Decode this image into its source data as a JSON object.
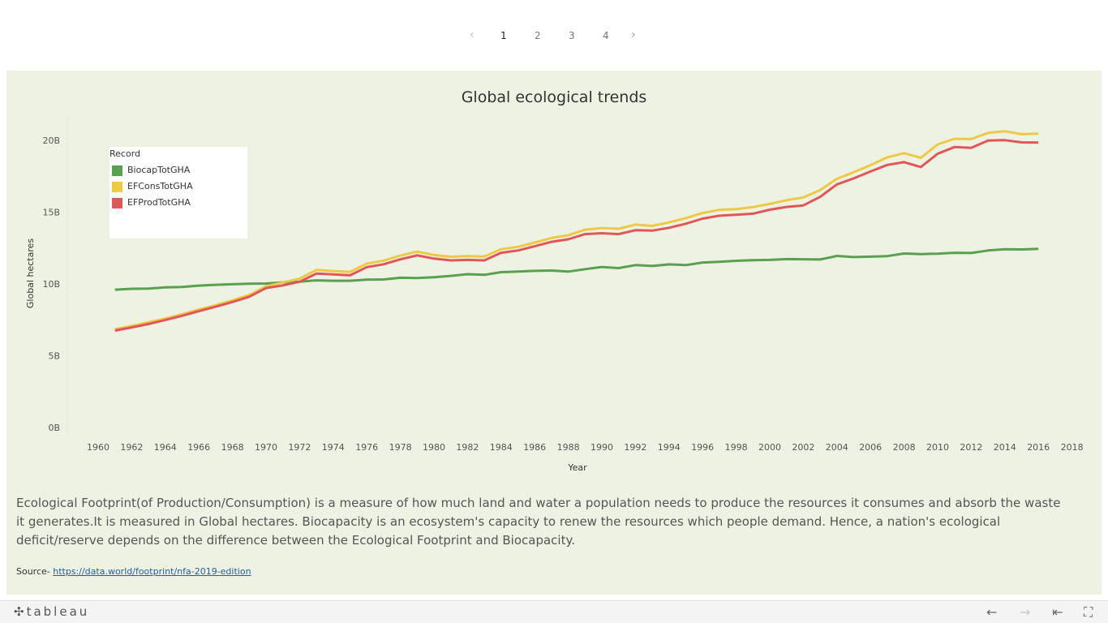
{
  "pager": {
    "prev": "‹",
    "next": "›",
    "pages": [
      "1",
      "2",
      "3",
      "4"
    ],
    "active": "1"
  },
  "chart_data": {
    "type": "line",
    "title": "Global ecological trends",
    "xlabel": "Year",
    "ylabel": "Global hectares",
    "xlim": [
      1959,
      2019
    ],
    "ylim": [
      0,
      21000000000
    ],
    "x_ticks": [
      "1960",
      "1962",
      "1964",
      "1966",
      "1968",
      "1970",
      "1972",
      "1974",
      "1976",
      "1978",
      "1980",
      "1982",
      "1984",
      "1986",
      "1988",
      "1990",
      "1992",
      "1994",
      "1996",
      "1998",
      "2000",
      "2002",
      "2004",
      "2006",
      "2008",
      "2010",
      "2012",
      "2014",
      "2016",
      "2018"
    ],
    "y_ticks": [
      {
        "value": 0,
        "label": "0B"
      },
      {
        "value": 5000000000,
        "label": "5B"
      },
      {
        "value": 10000000000,
        "label": "10B"
      },
      {
        "value": 15000000000,
        "label": "15B"
      },
      {
        "value": 20000000000,
        "label": "20B"
      }
    ],
    "legend_title": "Record",
    "legend_position": "top-left",
    "x": [
      1961,
      1962,
      1963,
      1964,
      1965,
      1966,
      1967,
      1968,
      1969,
      1970,
      1971,
      1972,
      1973,
      1974,
      1975,
      1976,
      1977,
      1978,
      1979,
      1980,
      1981,
      1982,
      1983,
      1984,
      1985,
      1986,
      1987,
      1988,
      1989,
      1990,
      1991,
      1992,
      1993,
      1994,
      1995,
      1996,
      1997,
      1998,
      1999,
      2000,
      2001,
      2002,
      2003,
      2004,
      2005,
      2006,
      2007,
      2008,
      2009,
      2010,
      2011,
      2012,
      2013,
      2014,
      2015,
      2016
    ],
    "series": [
      {
        "name": "BiocapTotGHA",
        "color": "#59a14f",
        "values": [
          9.6,
          9.66,
          9.67,
          9.76,
          9.79,
          9.88,
          9.94,
          9.98,
          10.01,
          10.03,
          10.11,
          10.16,
          10.25,
          10.22,
          10.22,
          10.3,
          10.31,
          10.43,
          10.41,
          10.47,
          10.56,
          10.68,
          10.63,
          10.82,
          10.86,
          10.91,
          10.93,
          10.86,
          11.03,
          11.18,
          11.1,
          11.31,
          11.25,
          11.36,
          11.31,
          11.49,
          11.54,
          11.61,
          11.65,
          11.67,
          11.73,
          11.72,
          11.7,
          11.95,
          11.87,
          11.9,
          11.94,
          12.12,
          12.08,
          12.11,
          12.17,
          12.15,
          12.33,
          12.42,
          12.4,
          12.44
        ]
      },
      {
        "name": "EFConsTotGHA",
        "color": "#edc948",
        "values": [
          6.85,
          7.08,
          7.32,
          7.59,
          7.89,
          8.22,
          8.52,
          8.86,
          9.23,
          9.83,
          10.11,
          10.37,
          10.97,
          10.9,
          10.84,
          11.41,
          11.62,
          11.97,
          12.25,
          12.01,
          11.89,
          11.93,
          11.91,
          12.42,
          12.58,
          12.88,
          13.2,
          13.39,
          13.78,
          13.89,
          13.84,
          14.13,
          14.04,
          14.29,
          14.58,
          14.94,
          15.16,
          15.21,
          15.35,
          15.57,
          15.83,
          16.02,
          16.53,
          17.32,
          17.78,
          18.27,
          18.82,
          19.11,
          18.78,
          19.72,
          20.11,
          20.09,
          20.52,
          20.63,
          20.43,
          20.47
        ]
      },
      {
        "name": "EFProdTotGHA",
        "color": "#e15759",
        "values": [
          6.75,
          6.97,
          7.21,
          7.49,
          7.78,
          8.11,
          8.41,
          8.74,
          9.11,
          9.71,
          9.9,
          10.15,
          10.72,
          10.66,
          10.6,
          11.17,
          11.37,
          11.71,
          11.99,
          11.76,
          11.64,
          11.67,
          11.64,
          12.17,
          12.33,
          12.62,
          12.93,
          13.11,
          13.47,
          13.53,
          13.47,
          13.74,
          13.71,
          13.91,
          14.19,
          14.55,
          14.75,
          14.82,
          14.89,
          15.17,
          15.36,
          15.47,
          16.06,
          16.93,
          17.35,
          17.83,
          18.29,
          18.48,
          18.14,
          19.07,
          19.53,
          19.48,
          19.99,
          20.01,
          19.86,
          19.84
        ]
      }
    ]
  },
  "description": "Ecological Footprint(of Production/Consumption) is a measure of how much land and water a population needs to produce the resources it consumes and absorb the waste it generates.It is measured in Global hectares. Biocapacity is an ecosystem's capacity to renew the resources which people demand. Hence, a nation's ecological deficit/reserve depends on the difference between the Ecological Footprint and Biocapacity.",
  "source": {
    "prefix": "Source- ",
    "link": "https://data.world/footprint/nfa-2019-edition"
  },
  "toolbar": {
    "logo": "tableau",
    "undo_icon": "arrow-left-icon",
    "redo_icon": "arrow-right-icon",
    "revert_icon": "revert-icon",
    "fullscreen_icon": "fullscreen-icon"
  }
}
